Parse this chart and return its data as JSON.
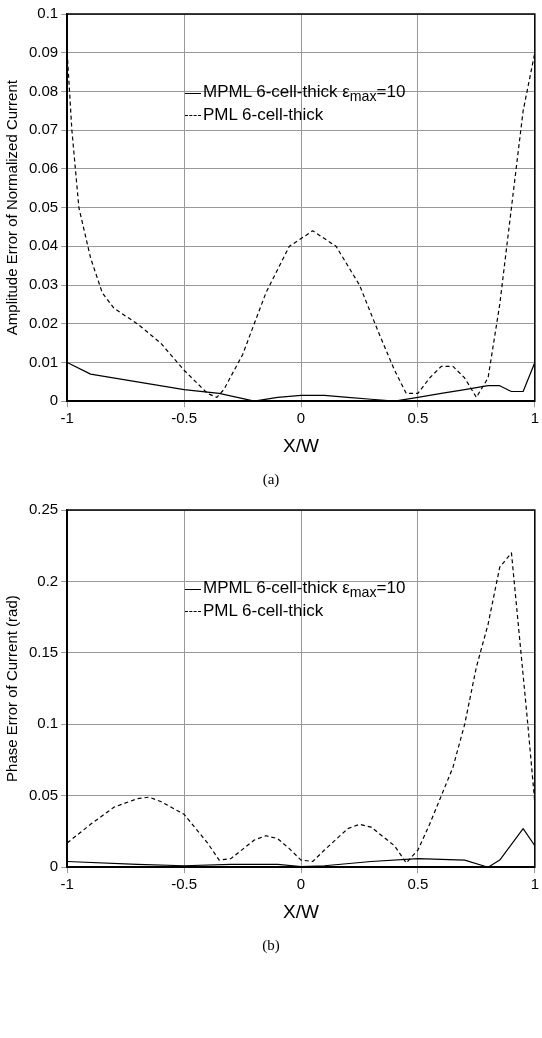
{
  "chart_data": [
    {
      "type": "line",
      "xlabel": "X/W",
      "ylabel": "Amplitude Error of Normalized Current",
      "xlim": [
        -1,
        1
      ],
      "xticks": [
        -1,
        -0.5,
        0,
        0.5,
        1
      ],
      "ylim": [
        0,
        0.1
      ],
      "yticks": [
        0,
        0.01,
        0.02,
        0.03,
        0.04,
        0.05,
        0.06,
        0.07,
        0.08,
        0.09,
        0.1
      ],
      "grid": true,
      "legend": "top",
      "marker": "none",
      "annotations": [
        "(a)"
      ],
      "series": [
        {
          "name": "MPML 6-cell-thick ε$_{max}$=10",
          "color": "#000000",
          "line_style": "solid",
          "x": [
            -1,
            -0.9,
            -0.7,
            -0.5,
            -0.35,
            -0.2,
            -0.1,
            0,
            0.1,
            0.2,
            0.3,
            0.4,
            0.5,
            0.6,
            0.7,
            0.8,
            0.85,
            0.9,
            0.95,
            1
          ],
          "values": [
            0.01,
            0.007,
            0.005,
            0.003,
            0.002,
            0,
            0.001,
            0.0015,
            0.0015,
            0.001,
            0.0005,
            0,
            0.001,
            0.002,
            0.003,
            0.004,
            0.004,
            0.0025,
            0.0025,
            0.01
          ]
        },
        {
          "name": "PML 6-cell-thick",
          "color": "#000000",
          "line_style": "dashed",
          "x": [
            -1,
            -0.98,
            -0.95,
            -0.9,
            -0.85,
            -0.8,
            -0.7,
            -0.6,
            -0.5,
            -0.4,
            -0.36,
            -0.33,
            -0.25,
            -0.15,
            -0.05,
            0.05,
            0.15,
            0.25,
            0.33,
            0.4,
            0.45,
            0.5,
            0.55,
            0.6,
            0.65,
            0.7,
            0.75,
            0.8,
            0.85,
            0.9,
            0.95,
            1
          ],
          "values": [
            0.09,
            0.07,
            0.05,
            0.037,
            0.028,
            0.024,
            0.02,
            0.015,
            0.008,
            0.002,
            0.001,
            0.003,
            0.012,
            0.028,
            0.04,
            0.044,
            0.04,
            0.03,
            0.018,
            0.008,
            0.002,
            0.002,
            0.006,
            0.009,
            0.009,
            0.006,
            0.001,
            0.006,
            0.025,
            0.05,
            0.075,
            0.09
          ]
        }
      ]
    },
    {
      "type": "line",
      "xlabel": "X/W",
      "ylabel": "Phase Error of Current (rad)",
      "xlim": [
        -1,
        1
      ],
      "xticks": [
        -1,
        -0.5,
        0,
        0.5,
        1
      ],
      "ylim": [
        0,
        0.25
      ],
      "yticks": [
        0,
        0.05,
        0.1,
        0.15,
        0.2,
        0.25
      ],
      "grid": true,
      "legend": "top",
      "marker": "none",
      "annotations": [
        "(b)"
      ],
      "series": [
        {
          "name": "MPML 6-cell-thick ε$_{max}$=10",
          "color": "#000000",
          "line_style": "solid",
          "x": [
            -1,
            -0.7,
            -0.5,
            -0.3,
            -0.1,
            0,
            0.1,
            0.3,
            0.5,
            0.7,
            0.8,
            0.85,
            0.95,
            1
          ],
          "values": [
            0.004,
            0.002,
            0.001,
            0.002,
            0.002,
            0.0005,
            0.001,
            0.004,
            0.006,
            0.005,
            0,
            0.005,
            0.027,
            0.015
          ]
        },
        {
          "name": "PML 6-cell-thick",
          "color": "#000000",
          "line_style": "dashed",
          "x": [
            -1,
            -0.9,
            -0.8,
            -0.7,
            -0.65,
            -0.6,
            -0.5,
            -0.4,
            -0.35,
            -0.3,
            -0.2,
            -0.15,
            -0.1,
            -0.05,
            0,
            0.05,
            0.1,
            0.2,
            0.25,
            0.3,
            0.4,
            0.45,
            0.5,
            0.55,
            0.6,
            0.65,
            0.7,
            0.75,
            0.8,
            0.85,
            0.9,
            0.97,
            1
          ],
          "values": [
            0.017,
            0.03,
            0.042,
            0.048,
            0.049,
            0.046,
            0.037,
            0.017,
            0.005,
            0.006,
            0.019,
            0.022,
            0.02,
            0.013,
            0.005,
            0.004,
            0.012,
            0.027,
            0.03,
            0.028,
            0.015,
            0.003,
            0.012,
            0.03,
            0.05,
            0.07,
            0.1,
            0.14,
            0.17,
            0.21,
            0.22,
            0.1,
            0.045
          ]
        }
      ]
    }
  ]
}
